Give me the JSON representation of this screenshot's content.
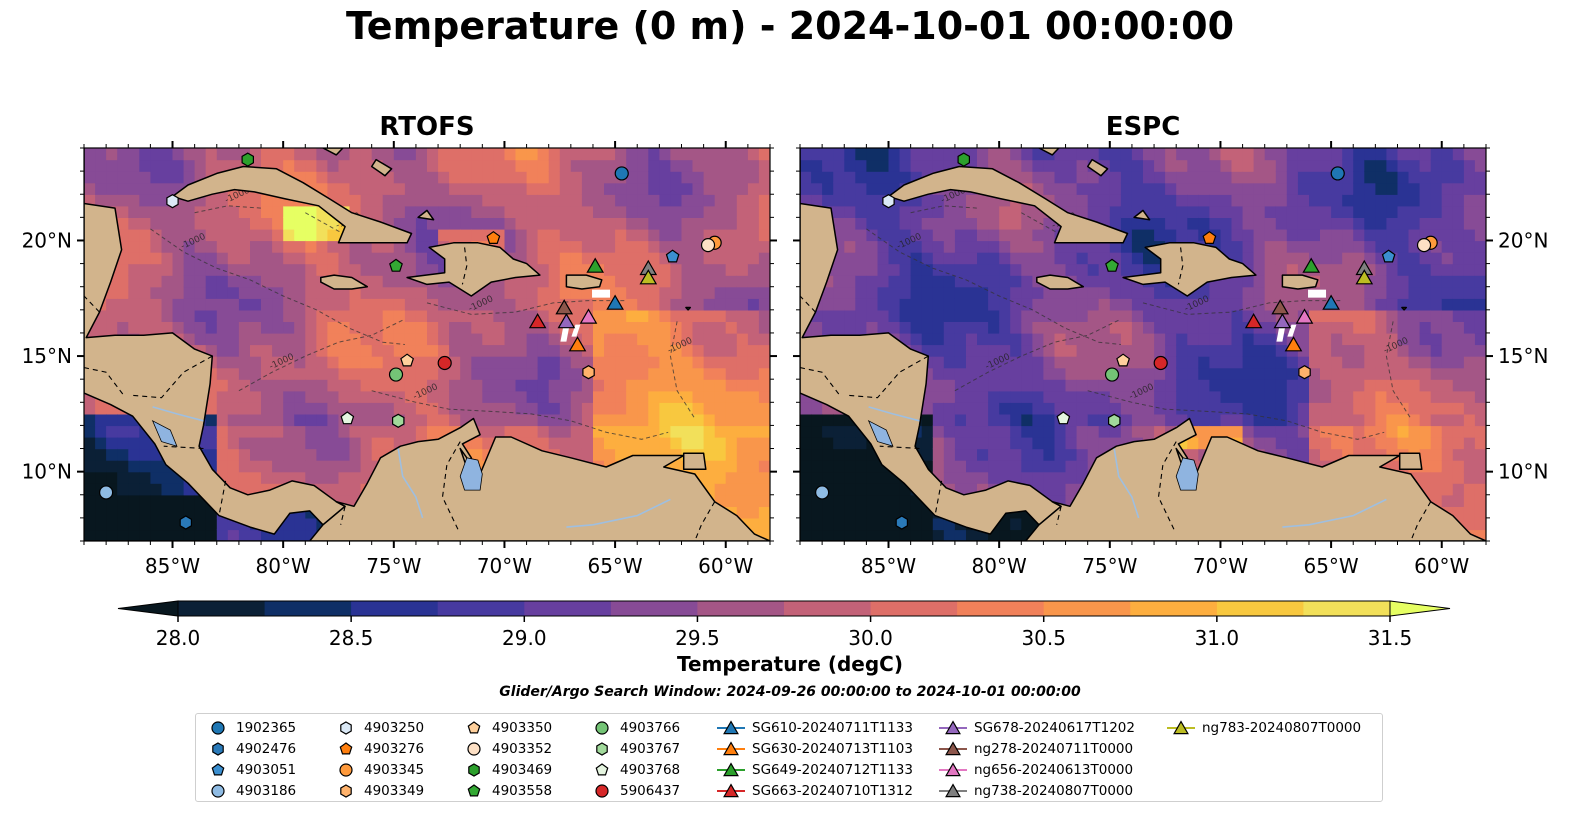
{
  "title": "Temperature (0 m) - 2024-10-01 00:00:00",
  "panels": [
    {
      "title": "RTOFS",
      "id": "rtofs"
    },
    {
      "title": "ESPC",
      "id": "espc"
    }
  ],
  "axes": {
    "xticks": [
      "85°W",
      "80°W",
      "75°W",
      "70°W",
      "65°W",
      "60°W"
    ],
    "xtick_values": [
      -85,
      -80,
      -75,
      -70,
      -65,
      -60
    ],
    "yticks": [
      "20°N",
      "15°N",
      "10°N"
    ],
    "ytick_values": [
      20,
      15,
      10
    ],
    "xlim": [
      -89,
      -58
    ],
    "ylim": [
      7,
      24
    ]
  },
  "colorbar": {
    "label": "Temperature (degC)",
    "ticks": [
      "28.0",
      "28.5",
      "29.0",
      "29.5",
      "30.0",
      "30.5",
      "31.0",
      "31.5"
    ],
    "vmin": 28.0,
    "vmax": 31.5,
    "colors": [
      "#0b2036",
      "#0f2f66",
      "#2a3394",
      "#473aa0",
      "#673f9f",
      "#874b96",
      "#a45686",
      "#c36278",
      "#de6f68",
      "#f1815a",
      "#f9964b",
      "#fdae3f",
      "#f8c83f",
      "#f2e05a"
    ],
    "extend_low": "#08171f",
    "extend_high": "#e6ff63"
  },
  "search_window": "Glider/Argo Search Window: 2024-09-26 00:00:00 to 2024-10-01 00:00:00",
  "contour_label": "-1000",
  "chart_data": {
    "type": "map",
    "title": "Temperature (0 m) - 2024-10-01 00:00:00",
    "panels": [
      "RTOFS",
      "ESPC"
    ],
    "colorbar_range": [
      28.0,
      31.5
    ],
    "colorbar_label": "Temperature (degC)",
    "xlim": [
      -89,
      -58
    ],
    "ylim": [
      7,
      24
    ],
    "platforms": [
      {
        "name": "1902365",
        "marker": "circle",
        "color": "#1f77b4",
        "lon": -64.7,
        "lat": 22.9
      },
      {
        "name": "4902476",
        "marker": "hexagon",
        "color": "#2a7ab9",
        "lon": -84.4,
        "lat": 7.8
      },
      {
        "name": "4903051",
        "marker": "pentagon",
        "color": "#3b8fd0",
        "lon": -62.4,
        "lat": 19.3
      },
      {
        "name": "4903186",
        "marker": "circle",
        "color": "#8fbbe3",
        "lon": -88.0,
        "lat": 9.1
      },
      {
        "name": "4903250",
        "marker": "hexagon",
        "color": "#dbe9f6",
        "lon": -85.0,
        "lat": 21.7
      },
      {
        "name": "4903276",
        "marker": "pentagon",
        "color": "#ff7f0e",
        "lon": -70.5,
        "lat": 20.1
      },
      {
        "name": "4903345",
        "marker": "circle",
        "color": "#ff9a3c",
        "lon": -60.5,
        "lat": 19.9
      },
      {
        "name": "4903349",
        "marker": "hexagon",
        "color": "#ffb26b",
        "lon": -66.2,
        "lat": 14.3
      },
      {
        "name": "4903350",
        "marker": "pentagon",
        "color": "#ffd09c",
        "lon": -74.4,
        "lat": 14.8
      },
      {
        "name": "4903352",
        "marker": "circle",
        "color": "#fde0c5",
        "lon": -60.8,
        "lat": 19.8
      },
      {
        "name": "4903469",
        "marker": "hexagon",
        "color": "#2ca02c",
        "lon": -81.6,
        "lat": 23.5
      },
      {
        "name": "4903558",
        "marker": "pentagon",
        "color": "#33a933",
        "lon": -74.9,
        "lat": 18.9
      },
      {
        "name": "4903766",
        "marker": "circle",
        "color": "#74c476",
        "lon": -74.9,
        "lat": 14.2
      },
      {
        "name": "4903767",
        "marker": "hexagon",
        "color": "#a1d99b",
        "lon": -74.8,
        "lat": 12.2
      },
      {
        "name": "4903768",
        "marker": "pentagon",
        "color": "#e5f5e0",
        "lon": -77.1,
        "lat": 12.3
      },
      {
        "name": "5906437",
        "marker": "circle",
        "color": "#d62728",
        "lon": -72.7,
        "lat": 14.7
      },
      {
        "name": "SG610-20240711T1133",
        "marker": "triangle",
        "color": "#1f77b4",
        "lon": -65.0,
        "lat": 17.3
      },
      {
        "name": "SG630-20240713T1103",
        "marker": "triangle",
        "color": "#ff7f0e",
        "lon": -66.7,
        "lat": 15.5
      },
      {
        "name": "SG649-20240712T1133",
        "marker": "triangle",
        "color": "#2ca02c",
        "lon": -65.9,
        "lat": 18.9
      },
      {
        "name": "SG663-20240710T1312",
        "marker": "triangle",
        "color": "#d62728",
        "lon": -68.5,
        "lat": 16.5
      },
      {
        "name": "SG678-20240617T1202",
        "marker": "triangle",
        "color": "#9467bd",
        "lon": -67.2,
        "lat": 16.5
      },
      {
        "name": "ng278-20240711T0000",
        "marker": "triangle",
        "color": "#8c564b",
        "lon": -67.3,
        "lat": 17.1
      },
      {
        "name": "ng656-20240613T0000",
        "marker": "triangle",
        "color": "#e377c2",
        "lon": -66.2,
        "lat": 16.7
      },
      {
        "name": "ng738-20240807T0000",
        "marker": "triangle",
        "color": "#7f7f7f",
        "lon": -63.5,
        "lat": 18.8
      },
      {
        "name": "ng783-20240807T0000",
        "marker": "triangle",
        "color": "#bcbd22",
        "lon": -63.5,
        "lat": 18.4
      }
    ]
  }
}
